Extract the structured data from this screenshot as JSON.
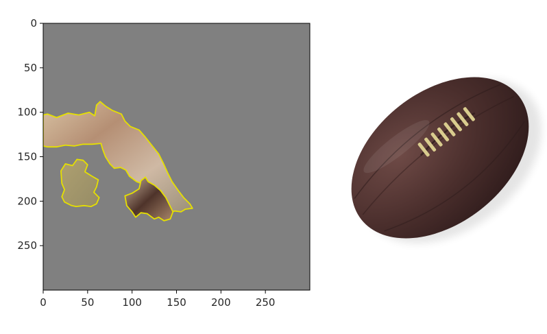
{
  "chart_data": [
    {
      "type": "image",
      "title": "",
      "xlabel": "",
      "ylabel": "",
      "xlim": [
        0,
        300
      ],
      "ylim": [
        300,
        0
      ],
      "y_inverted": true,
      "x_ticks": [
        0,
        50,
        100,
        150,
        200,
        250
      ],
      "y_ticks": [
        0,
        50,
        100,
        150,
        200,
        250
      ],
      "background_color": "#808080",
      "mask_outline_color": "#e6e000",
      "grid": false,
      "legend": "none",
      "content": "masked image regions shown with yellow boundaries on a grey background",
      "regions": [
        {
          "polygon": [
            [
              0,
              103
            ],
            [
              5,
              102
            ],
            [
              15,
              106
            ],
            [
              28,
              101
            ],
            [
              40,
              103
            ],
            [
              52,
              100
            ],
            [
              58,
              104
            ],
            [
              60,
              92
            ],
            [
              64,
              88
            ],
            [
              70,
              93
            ],
            [
              78,
              98
            ],
            [
              88,
              102
            ],
            [
              92,
              110
            ],
            [
              98,
              116
            ],
            [
              108,
              120
            ],
            [
              115,
              128
            ],
            [
              122,
              137
            ],
            [
              130,
              147
            ],
            [
              135,
              157
            ],
            [
              140,
              168
            ],
            [
              145,
              178
            ],
            [
              152,
              188
            ],
            [
              158,
              196
            ],
            [
              165,
              203
            ],
            [
              168,
              208
            ],
            [
              160,
              209
            ],
            [
              155,
              212
            ],
            [
              148,
              211
            ],
            [
              140,
              214
            ],
            [
              137,
              204
            ],
            [
              127,
              193
            ],
            [
              118,
              183
            ],
            [
              105,
              178
            ],
            [
              97,
              172
            ],
            [
              93,
              165
            ],
            [
              87,
              162
            ],
            [
              80,
              163
            ],
            [
              75,
              158
            ],
            [
              70,
              150
            ],
            [
              67,
              142
            ],
            [
              65,
              135
            ],
            [
              55,
              136
            ],
            [
              45,
              136
            ],
            [
              35,
              138
            ],
            [
              25,
              137
            ],
            [
              15,
              139
            ],
            [
              5,
              139
            ],
            [
              0,
              138
            ]
          ],
          "fill": [
            "#d8c2a3",
            "#b58f74",
            "#cfb9a4",
            "#9a8f78"
          ]
        },
        {
          "polygon": [
            [
              20,
              166
            ],
            [
              25,
              158
            ],
            [
              33,
              160
            ],
            [
              38,
              153
            ],
            [
              45,
              154
            ],
            [
              50,
              159
            ],
            [
              47,
              167
            ],
            [
              55,
              172
            ],
            [
              62,
              176
            ],
            [
              60,
              184
            ],
            [
              57,
              190
            ],
            [
              63,
              196
            ],
            [
              60,
              203
            ],
            [
              54,
              206
            ],
            [
              46,
              205
            ],
            [
              37,
              206
            ],
            [
              32,
              205
            ],
            [
              24,
              201
            ],
            [
              21,
              195
            ],
            [
              24,
              187
            ],
            [
              21,
              180
            ]
          ],
          "fill": [
            "#aea070",
            "#968c66"
          ]
        },
        {
          "polygon": [
            [
              92,
              194
            ],
            [
              100,
              191
            ],
            [
              108,
              186
            ],
            [
              110,
              177
            ],
            [
              115,
              173
            ],
            [
              118,
              178
            ],
            [
              125,
              182
            ],
            [
              132,
              188
            ],
            [
              138,
              196
            ],
            [
              142,
              204
            ],
            [
              146,
              212
            ],
            [
              143,
              220
            ],
            [
              136,
              222
            ],
            [
              130,
              218
            ],
            [
              125,
              220
            ],
            [
              117,
              214
            ],
            [
              110,
              213
            ],
            [
              104,
              218
            ],
            [
              100,
              212
            ],
            [
              94,
              205
            ]
          ],
          "fill": [
            "#c9b49d",
            "#4e332a",
            "#a9876a"
          ]
        }
      ]
    },
    {
      "type": "image",
      "content": "brown leather rugby ball with cream lacing on white background",
      "colors": {
        "ball": "#4a2e2c",
        "ball_highlight": "#6e4a46",
        "ball_shadow": "#2e1b1b",
        "lacing": "#d9cc8e",
        "background": "#ffffff"
      }
    }
  ]
}
